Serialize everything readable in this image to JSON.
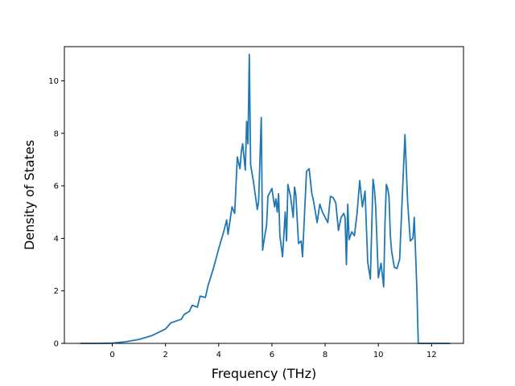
{
  "chart_data": {
    "type": "line",
    "title": "",
    "xlabel": "Frequency (THz)",
    "ylabel": "Density of States",
    "xlim": [
      -1.8,
      13.2
    ],
    "ylim": [
      0,
      11.3
    ],
    "grid": false,
    "legend": "none",
    "line_color": "#1f77b4",
    "xticks": [
      0,
      2,
      4,
      6,
      8,
      10,
      12
    ],
    "yticks": [
      0,
      2,
      4,
      6,
      8,
      10
    ],
    "series": [
      {
        "name": "",
        "x": [
          -1.2,
          -0.5,
          0.0,
          0.5,
          1.0,
          1.5,
          2.0,
          2.2,
          2.6,
          2.7,
          2.9,
          3.0,
          3.2,
          3.3,
          3.5,
          3.6,
          3.8,
          4.0,
          4.2,
          4.3,
          4.35,
          4.5,
          4.6,
          4.7,
          4.8,
          4.85,
          4.9,
          5.0,
          5.05,
          5.1,
          5.15,
          5.2,
          5.3,
          5.45,
          5.5,
          5.6,
          5.65,
          5.7,
          5.8,
          5.85,
          6.0,
          6.1,
          6.15,
          6.2,
          6.25,
          6.3,
          6.4,
          6.5,
          6.55,
          6.6,
          6.7,
          6.8,
          6.85,
          6.9,
          7.0,
          7.1,
          7.15,
          7.3,
          7.4,
          7.5,
          7.55,
          7.7,
          7.8,
          7.9,
          8.0,
          8.1,
          8.2,
          8.3,
          8.4,
          8.5,
          8.6,
          8.7,
          8.75,
          8.8,
          8.85,
          8.9,
          9.0,
          9.1,
          9.2,
          9.3,
          9.4,
          9.5,
          9.6,
          9.7,
          9.8,
          9.85,
          9.9,
          10.0,
          10.1,
          10.2,
          10.25,
          10.3,
          10.35,
          10.4,
          10.45,
          10.5,
          10.6,
          10.7,
          10.8,
          10.9,
          11.0,
          11.1,
          11.2,
          11.3,
          11.35,
          11.45,
          11.5,
          11.6,
          11.75,
          12.0,
          12.7
        ],
        "y": [
          0.0,
          0.0,
          0.01,
          0.06,
          0.15,
          0.3,
          0.55,
          0.78,
          0.92,
          1.1,
          1.22,
          1.45,
          1.38,
          1.8,
          1.75,
          2.2,
          2.85,
          3.6,
          4.3,
          4.7,
          4.15,
          5.2,
          4.95,
          7.1,
          6.65,
          7.3,
          7.6,
          6.6,
          8.45,
          7.6,
          11.0,
          6.8,
          6.2,
          5.1,
          5.4,
          8.6,
          3.55,
          3.9,
          4.5,
          5.6,
          5.9,
          5.2,
          5.5,
          5.0,
          5.7,
          4.1,
          3.3,
          5.0,
          3.9,
          6.05,
          5.6,
          4.8,
          5.95,
          5.65,
          3.8,
          3.9,
          3.3,
          6.55,
          6.65,
          5.7,
          5.5,
          4.6,
          5.3,
          5.0,
          4.8,
          4.6,
          5.6,
          5.55,
          5.35,
          4.3,
          4.8,
          4.95,
          4.8,
          3.0,
          5.3,
          3.95,
          4.25,
          4.1,
          4.95,
          6.2,
          5.2,
          5.8,
          3.1,
          2.45,
          6.25,
          5.9,
          5.2,
          2.5,
          3.05,
          2.15,
          4.6,
          6.05,
          5.9,
          5.6,
          4.1,
          3.5,
          2.9,
          2.85,
          3.2,
          5.6,
          7.95,
          5.4,
          3.9,
          4.0,
          4.8,
          2.0,
          0.0,
          0.0,
          0.0,
          0.0,
          0.0
        ]
      }
    ]
  }
}
